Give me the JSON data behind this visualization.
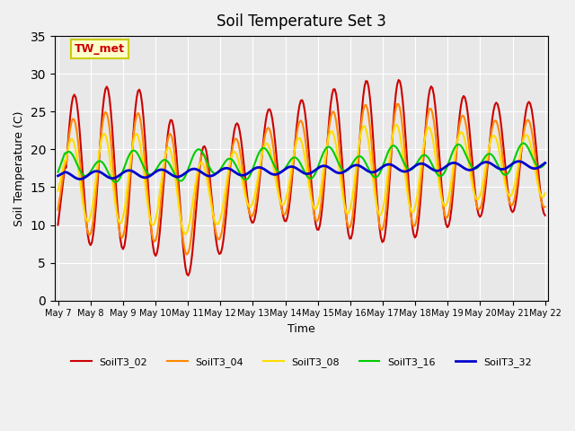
{
  "title": "Soil Temperature Set 3",
  "xlabel": "Time",
  "ylabel": "Soil Temperature (C)",
  "ylim": [
    0,
    35
  ],
  "annotation_text": "TW_met",
  "annotation_color": "#cc0000",
  "annotation_bg": "#ffffcc",
  "annotation_border": "#cccc00",
  "fig_bg_color": "#f0f0f0",
  "plot_bg": "#e8e8e8",
  "legend_entries": [
    "SoilT3_02",
    "SoilT3_04",
    "SoilT3_08",
    "SoilT3_16",
    "SoilT3_32"
  ],
  "line_colors": [
    "#cc0000",
    "#ff8800",
    "#ffdd00",
    "#00cc00",
    "#0000cc"
  ],
  "line_widths": [
    1.5,
    1.5,
    1.5,
    1.5,
    2.0
  ],
  "xtick_labels": [
    "May 7",
    "May 8",
    "May 9",
    "May 10",
    "May 11",
    "May 12",
    "May 13",
    "May 14",
    "May 15",
    "May 16",
    "May 17",
    "May 18",
    "May 19",
    "May 20",
    "May 21",
    "May 22"
  ],
  "ytick_values": [
    0,
    5,
    10,
    15,
    20,
    25,
    30,
    35
  ],
  "num_days": 15,
  "points_per_day": 24
}
